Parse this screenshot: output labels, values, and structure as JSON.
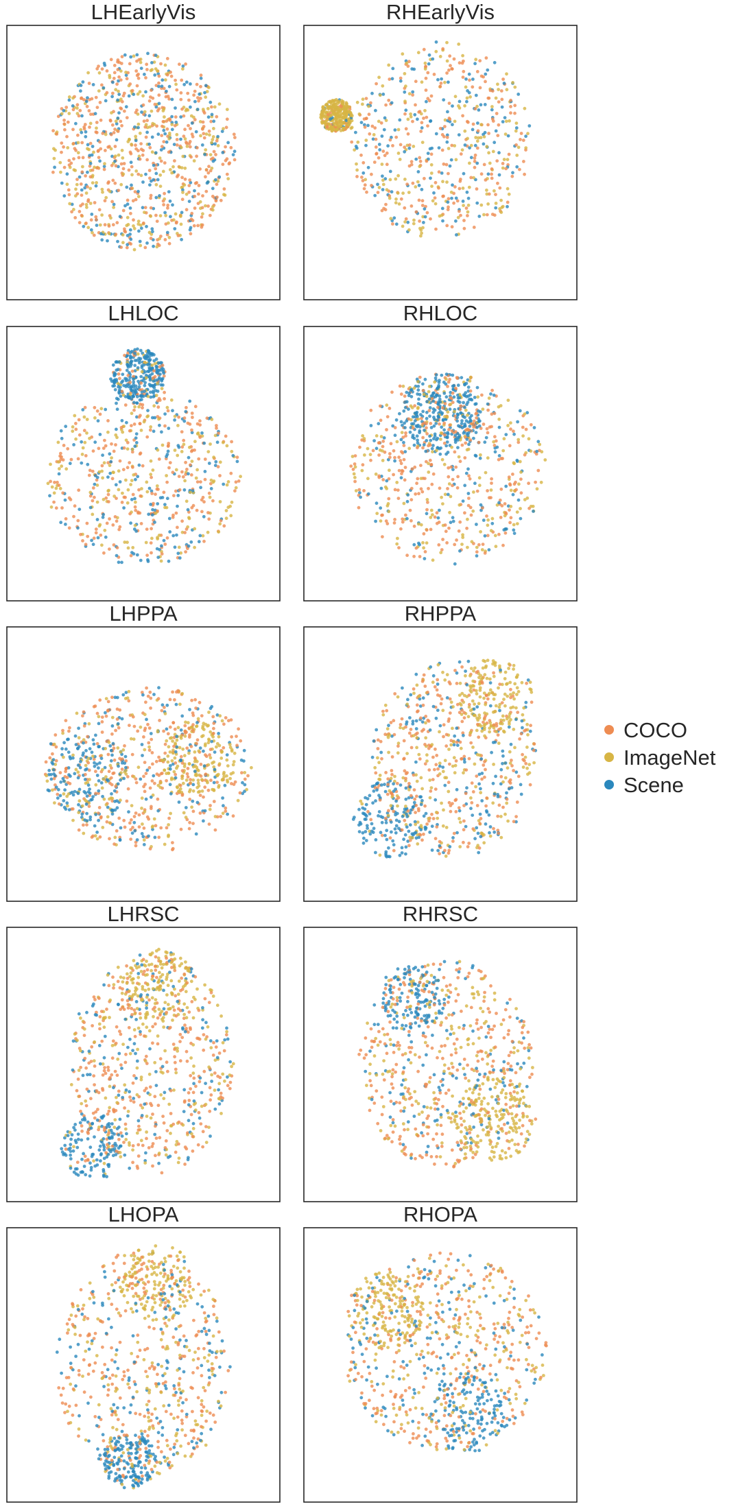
{
  "chart_data": {
    "type": "scatter",
    "grid": false,
    "legend_placement": "right",
    "series": [
      {
        "name": "COCO",
        "color": "#ee8c52"
      },
      {
        "name": "ImageNet",
        "color": "#d7b545"
      },
      {
        "name": "Scene",
        "color": "#2b88bd"
      }
    ],
    "panels": [
      {
        "title": "LHEarlyVis"
      },
      {
        "title": "RHEarlyVis"
      },
      {
        "title": "LHLOC"
      },
      {
        "title": "RHLOC"
      },
      {
        "title": "LHPPA"
      },
      {
        "title": "RHPPA"
      },
      {
        "title": "LHRSC"
      },
      {
        "title": "RHRSC"
      },
      {
        "title": "LHOPA"
      },
      {
        "title": "RHOPA"
      }
    ]
  }
}
